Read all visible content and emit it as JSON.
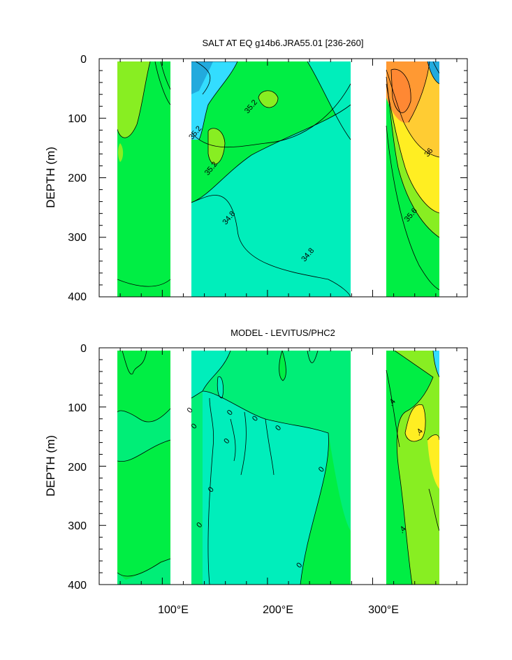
{
  "chart_data": [
    {
      "type": "contour",
      "title": "SALT AT EQ g14b6.JRA55.01 [236-260]",
      "ylabel": "DEPTH (m)",
      "xlim": [
        40,
        390
      ],
      "ylim": [
        400,
        0
      ],
      "y_ticks": [
        "0",
        "100",
        "200",
        "300",
        "400"
      ],
      "x_ticks": [],
      "colors": {
        "base": "#00ee44",
        "light_green": "#88ee22",
        "aqua": "#00eebb",
        "cyan": "#33ddff",
        "deep_cyan": "#22aadd",
        "yellow": "#ffee22",
        "gold": "#ffcc33",
        "orange": "#ff9933",
        "deep_orange": "#ff8833"
      },
      "contour_labels": [
        {
          "text": "35.2",
          "x": 186,
          "y": 83
        },
        {
          "text": "35.2",
          "x": 133,
          "y": 127
        },
        {
          "text": "35.2",
          "x": 148,
          "y": 187
        },
        {
          "text": "34.8",
          "x": 165,
          "y": 270
        },
        {
          "text": "34.8",
          "x": 240,
          "y": 332
        },
        {
          "text": "36",
          "x": 355,
          "y": 160
        },
        {
          "text": "35.6",
          "x": 338,
          "y": 265
        }
      ]
    },
    {
      "type": "contour",
      "title": "MODEL - LEVITUS/PHC2",
      "ylabel": "DEPTH (m)",
      "xlim": [
        40,
        390
      ],
      "ylim": [
        400,
        0
      ],
      "y_ticks": [
        "0",
        "100",
        "200",
        "300",
        "400"
      ],
      "x_ticks": [
        "100°E",
        "200°E",
        "300°E"
      ],
      "x_tick_values": [
        100,
        200,
        300
      ],
      "contour_labels": [
        {
          "text": "0",
          "x": 128,
          "y": 108
        },
        {
          "text": "0",
          "x": 132,
          "y": 135
        },
        {
          "text": "0",
          "x": 166,
          "y": 112
        },
        {
          "text": "0",
          "x": 190,
          "y": 122
        },
        {
          "text": "0",
          "x": 212,
          "y": 138
        },
        {
          "text": "0",
          "x": 163,
          "y": 160
        },
        {
          "text": "0",
          "x": 148,
          "y": 242
        },
        {
          "text": "0",
          "x": 253,
          "y": 208
        },
        {
          "text": "0",
          "x": 137,
          "y": 302
        },
        {
          "text": "0",
          "x": 232,
          "y": 370
        },
        {
          "text": ".4",
          "x": 320,
          "y": 95
        },
        {
          "text": ".4",
          "x": 346,
          "y": 145
        },
        {
          "text": ".4",
          "x": 330,
          "y": 310
        }
      ]
    }
  ]
}
